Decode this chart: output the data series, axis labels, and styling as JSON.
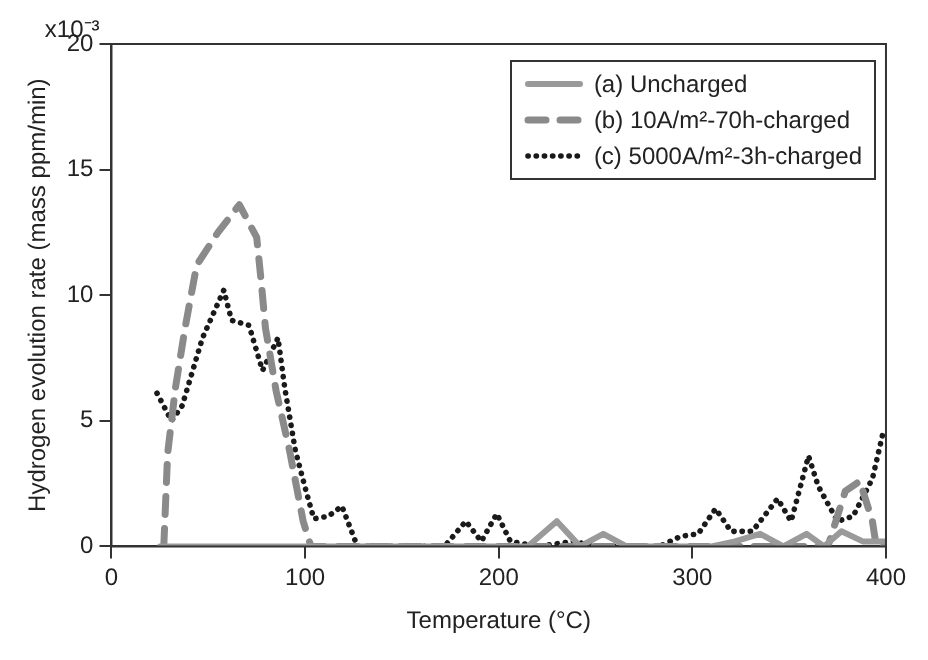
{
  "chart_data": {
    "type": "line",
    "xlabel": "Temperature (°C)",
    "ylabel": "Hydrogen evolution rate (mass ppm/min)",
    "xlim": [
      0,
      400
    ],
    "xticks": [
      0,
      100,
      200,
      300,
      400
    ],
    "ylim": [
      0,
      20
    ],
    "yticks": [
      0,
      5,
      10,
      15,
      20
    ],
    "annotations": [
      "x10⁻³"
    ],
    "grid": false,
    "legend": "top right",
    "marker": "none",
    "series": [
      {
        "name": "(a) Uncharged",
        "color": "#9a9a9a",
        "line_style": "solid",
        "x": [
          25,
          215,
          230,
          242,
          254,
          266,
          310,
          322,
          335,
          347,
          359,
          368,
          377,
          388,
          400
        ],
        "values": [
          0,
          0,
          1.0,
          0,
          0.5,
          0,
          0,
          0.2,
          0.5,
          0,
          0.5,
          0,
          0.6,
          0.2,
          0.2
        ]
      },
      {
        "name": "(b) 10A/m²-70h-charged",
        "color": "#8a8a8a",
        "line_style": "dashed",
        "x": [
          27,
          29,
          33,
          38,
          44,
          55,
          66,
          75,
          77.5,
          79.5,
          85,
          92,
          99,
          103,
          370,
          379,
          386.5,
          393,
          395,
          400
        ],
        "values": [
          0,
          3.7,
          6.3,
          8.7,
          11.2,
          12.5,
          13.6,
          12.3,
          10.4,
          8.7,
          6.2,
          3.8,
          1.0,
          0,
          0,
          2.2,
          2.6,
          1.0,
          0,
          0
        ]
      },
      {
        "name": "(c) 5000A/m²-3h-charged",
        "color": "#1a1a1a",
        "line_style": "dotted",
        "x": [
          23.5,
          31,
          36.5,
          47,
          58,
          62,
          71,
          78,
          86,
          89.5,
          95,
          100.5,
          104.5,
          112,
          119,
          127,
          172,
          183,
          191,
          199,
          206,
          220,
          239,
          250,
          283,
          294,
          303,
          312,
          320,
          331,
          344,
          351,
          360,
          365,
          375,
          383,
          393,
          399
        ],
        "values": [
          6.1,
          5.0,
          5.6,
          8.3,
          10.2,
          9.0,
          8.8,
          7.0,
          8.3,
          6.3,
          3.8,
          2.2,
          1.1,
          1.2,
          1.6,
          0,
          0,
          1.0,
          0.2,
          1.3,
          0.2,
          0,
          0.2,
          0,
          0,
          0.4,
          0.5,
          1.5,
          0.6,
          0.6,
          1.9,
          1.0,
          3.6,
          2.4,
          1.0,
          1.2,
          2.7,
          4.7
        ]
      }
    ]
  }
}
